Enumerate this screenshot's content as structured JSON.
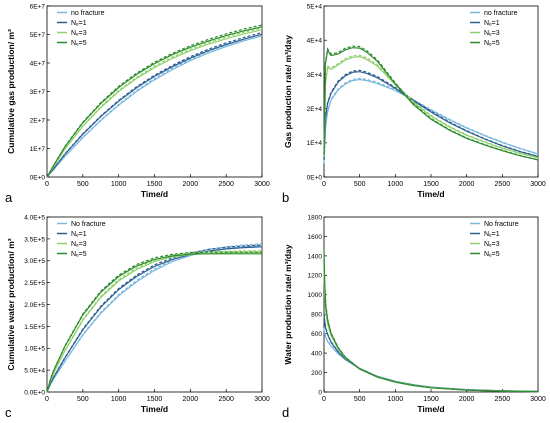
{
  "colors": {
    "no_fracture": "#7ab8df",
    "nf1": "#2f5f8f",
    "nf3": "#8fd16a",
    "nf5": "#2e8b2e",
    "axis": "#000000"
  },
  "chart_data": [
    {
      "panel_label": "a",
      "type": "line",
      "xlabel": "Time/d",
      "ylabel": "Cumulative gas production/ m³",
      "xlim": [
        0,
        3000
      ],
      "ylim": [
        0,
        60000000
      ],
      "x_ticks": [
        0,
        500,
        1000,
        1500,
        2000,
        2500,
        3000
      ],
      "y_ticks": [
        0,
        10000000,
        20000000,
        30000000,
        40000000,
        50000000,
        60000000
      ],
      "y_tick_labels": [
        "0E+0",
        "1E+7",
        "2E+7",
        "3E+7",
        "4E+7",
        "5E+7",
        "6E+7"
      ],
      "legend_position": "top-left",
      "grid": false,
      "x": [
        0,
        100,
        250,
        500,
        750,
        1000,
        1250,
        1500,
        1750,
        2000,
        2250,
        2500,
        2750,
        3000
      ],
      "series": [
        {
          "name": "no fracture",
          "color_key": "no_fracture",
          "values": [
            0,
            2800000,
            7200000,
            13800000,
            19800000,
            25200000,
            30000000,
            34100000,
            37700000,
            40800000,
            43500000,
            45800000,
            47800000,
            49500000
          ]
        },
        {
          "name": "N<sub>f</sub>=1",
          "label_text": "N‏f=1",
          "color_key": "nf1",
          "values": [
            0,
            3200000,
            8000000,
            15000000,
            21200000,
            26600000,
            31300000,
            35300000,
            38700000,
            41700000,
            44300000,
            46500000,
            48400000,
            50100000
          ]
        },
        {
          "name": "N f=3",
          "color_key": "nf3",
          "values": [
            0,
            4000000,
            9800000,
            17800000,
            24400000,
            30000000,
            34600000,
            38400000,
            41600000,
            44300000,
            46600000,
            48500000,
            50200000,
            51700000
          ]
        },
        {
          "name": "N f=5",
          "color_key": "nf5",
          "values": [
            0,
            4400000,
            10600000,
            19000000,
            25800000,
            31400000,
            36000000,
            39800000,
            42900000,
            45500000,
            47700000,
            49600000,
            51300000,
            52700000
          ]
        }
      ]
    },
    {
      "panel_label": "b",
      "type": "line",
      "xlabel": "Time/d",
      "ylabel": "Gas production rate/ m³/day",
      "xlim": [
        0,
        3000
      ],
      "ylim": [
        0,
        50000
      ],
      "x_ticks": [
        0,
        500,
        1000,
        1500,
        2000,
        2500,
        3000
      ],
      "y_ticks": [
        0,
        10000,
        20000,
        30000,
        40000,
        50000
      ],
      "y_tick_labels": [
        "0E+0",
        "1E+4",
        "2E+4",
        "3E+4",
        "4E+4",
        "5E+4"
      ],
      "legend_position": "top-right",
      "grid": false,
      "x": [
        0,
        20,
        50,
        100,
        200,
        300,
        400,
        500,
        600,
        750,
        1000,
        1250,
        1500,
        1750,
        2000,
        2250,
        2500,
        2750,
        3000
      ],
      "series": [
        {
          "name": "no fracture",
          "color_key": "no_fracture",
          "values": [
            4000,
            14000,
            19000,
            22500,
            25500,
            27200,
            28200,
            28500,
            28200,
            27300,
            25300,
            22400,
            19500,
            16800,
            14300,
            12100,
            10100,
            8300,
            6700
          ]
        },
        {
          "name": "N f=1",
          "color_key": "nf1",
          "values": [
            5000,
            17000,
            21500,
            24500,
            27800,
            29600,
            30600,
            30800,
            30300,
            29000,
            25900,
            22300,
            19000,
            16000,
            13400,
            11100,
            9100,
            7400,
            6000
          ]
        },
        {
          "name": "N f=3",
          "color_key": "nf3",
          "values": [
            6000,
            27000,
            32000,
            31500,
            32800,
            34200,
            35000,
            35200,
            34400,
            32400,
            27000,
            21800,
            17800,
            14700,
            12200,
            10200,
            8400,
            6900,
            5600
          ]
        },
        {
          "name": "N f=5",
          "color_key": "nf5",
          "values": [
            6500,
            33000,
            37000,
            35500,
            36000,
            37200,
            37800,
            37700,
            36500,
            33800,
            27200,
            21200,
            16900,
            13800,
            11300,
            9400,
            7700,
            6200,
            5000
          ]
        }
      ]
    },
    {
      "panel_label": "c",
      "type": "line",
      "xlabel": "Time/d",
      "ylabel": "Cumulative water production/ m³",
      "xlim": [
        0,
        3000
      ],
      "ylim": [
        0,
        400000
      ],
      "x_ticks": [
        0,
        500,
        1000,
        1500,
        2000,
        2500,
        3000
      ],
      "y_ticks": [
        0,
        50000,
        100000,
        150000,
        200000,
        250000,
        300000,
        350000,
        400000
      ],
      "y_tick_labels": [
        "0.0E+0",
        "5.0E+4",
        "1.0E+5",
        "1.5E+5",
        "2.0E+5",
        "2.5E+5",
        "3.0E+5",
        "3.5E+5",
        "4.0E+5"
      ],
      "legend_position": "top-left",
      "grid": false,
      "x": [
        0,
        50,
        100,
        250,
        500,
        750,
        1000,
        1250,
        1500,
        1750,
        2000,
        2250,
        2500,
        2750,
        3000
      ],
      "series": [
        {
          "name": "No fracture",
          "color_key": "no_fracture",
          "values": [
            0,
            18000,
            32000,
            70000,
            130000,
            180000,
            220000,
            252000,
            278000,
            298000,
            312000,
            322000,
            328000,
            332000,
            335000
          ]
        },
        {
          "name": "N f=1",
          "color_key": "nf1",
          "values": [
            0,
            20000,
            36000,
            78000,
            142000,
            194000,
            234000,
            264000,
            287000,
            303000,
            314000,
            322000,
            327000,
            330000,
            332000
          ]
        },
        {
          "name": "N f=3",
          "color_key": "nf3",
          "values": [
            0,
            26000,
            46000,
            94000,
            164000,
            216000,
            254000,
            280000,
            298000,
            309000,
            314000,
            317000,
            318000,
            319000,
            319000
          ]
        },
        {
          "name": "N f=5",
          "color_key": "nf5",
          "values": [
            0,
            30000,
            52000,
            104000,
            176000,
            228000,
            264000,
            288000,
            303000,
            311000,
            315000,
            316000,
            316000,
            316000,
            316000
          ]
        }
      ]
    },
    {
      "panel_label": "d",
      "type": "line",
      "xlabel": "Time/d",
      "ylabel": "Water production rate/ m³/day",
      "xlim": [
        0,
        3000
      ],
      "ylim": [
        0,
        1800
      ],
      "x_ticks": [
        0,
        500,
        1000,
        1500,
        2000,
        2500,
        3000
      ],
      "y_ticks": [
        0,
        200,
        400,
        600,
        800,
        1000,
        1200,
        1400,
        1600,
        1800
      ],
      "y_tick_labels": [
        "0",
        "200",
        "400",
        "600",
        "800",
        "1000",
        "1200",
        "1400",
        "1600",
        "1800"
      ],
      "legend_position": "top-right",
      "grid": false,
      "x": [
        0,
        10,
        25,
        50,
        100,
        200,
        300,
        500,
        750,
        1000,
        1250,
        1500,
        2000,
        2500,
        3000
      ],
      "series": [
        {
          "name": "No fracture",
          "color_key": "no_fracture",
          "values": [
            650,
            600,
            560,
            520,
            470,
            390,
            330,
            240,
            160,
            110,
            75,
            50,
            25,
            12,
            6
          ]
        },
        {
          "name": "N f=1",
          "color_key": "nf1",
          "values": [
            800,
            720,
            650,
            590,
            510,
            410,
            340,
            240,
            158,
            107,
            72,
            48,
            23,
            11,
            5
          ]
        },
        {
          "name": "N f=3",
          "color_key": "nf3",
          "values": [
            1300,
            1000,
            820,
            700,
            580,
            440,
            350,
            238,
            155,
            104,
            70,
            46,
            21,
            10,
            4
          ]
        },
        {
          "name": "N f=5",
          "color_key": "nf5",
          "values": [
            1450,
            1120,
            890,
            740,
            600,
            450,
            355,
            236,
            152,
            101,
            67,
            43,
            19,
            9,
            4
          ]
        }
      ]
    }
  ]
}
